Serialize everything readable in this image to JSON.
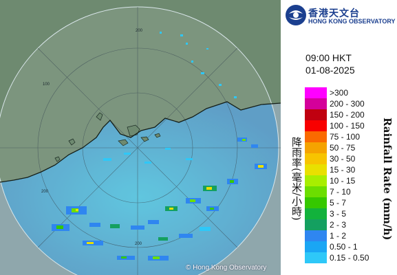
{
  "header": {
    "org_name_zh": "香港天文台",
    "org_name_en": "HONG KONG OBSERVATORY",
    "time": "09:00 HKT",
    "date": "01-08-2025",
    "logo_icon": "hko-logo-icon"
  },
  "legend": {
    "title_zh": "降雨率(毫米/小時)",
    "title_en": "Rainfall Rate (mm/h)",
    "items": [
      {
        "label": ">300",
        "color": "#ff00ff"
      },
      {
        "label": "200 - 300",
        "color": "#d4009a"
      },
      {
        "label": "150 - 200",
        "color": "#c00010"
      },
      {
        "label": "100 - 150",
        "color": "#f80000"
      },
      {
        "label": "75 - 100",
        "color": "#fa6a00"
      },
      {
        "label": "50 - 75",
        "color": "#f5a300"
      },
      {
        "label": "30 - 50",
        "color": "#f7c400"
      },
      {
        "label": "15 - 30",
        "color": "#e9e000"
      },
      {
        "label": "10 - 15",
        "color": "#a8ee00"
      },
      {
        "label": "7 - 10",
        "color": "#6cde00"
      },
      {
        "label": "5 - 7",
        "color": "#35c800"
      },
      {
        "label": "3 - 5",
        "color": "#12b23c"
      },
      {
        "label": "2 - 3",
        "color": "#14a060"
      },
      {
        "label": "1 - 2",
        "color": "#2f86f0"
      },
      {
        "label": "0.50 - 1",
        "color": "#1aa6f4"
      },
      {
        "label": "0.15 - 0.50",
        "color": "#2ec8f8"
      }
    ]
  },
  "map": {
    "range_ring_labels": [
      "200",
      "100",
      "200",
      "200"
    ],
    "copyright": "© Hong Kong Observatory",
    "colors": {
      "sea": "#59a9c9",
      "land": "#6f8c72",
      "outside_range": "#8fa7ac"
    }
  }
}
